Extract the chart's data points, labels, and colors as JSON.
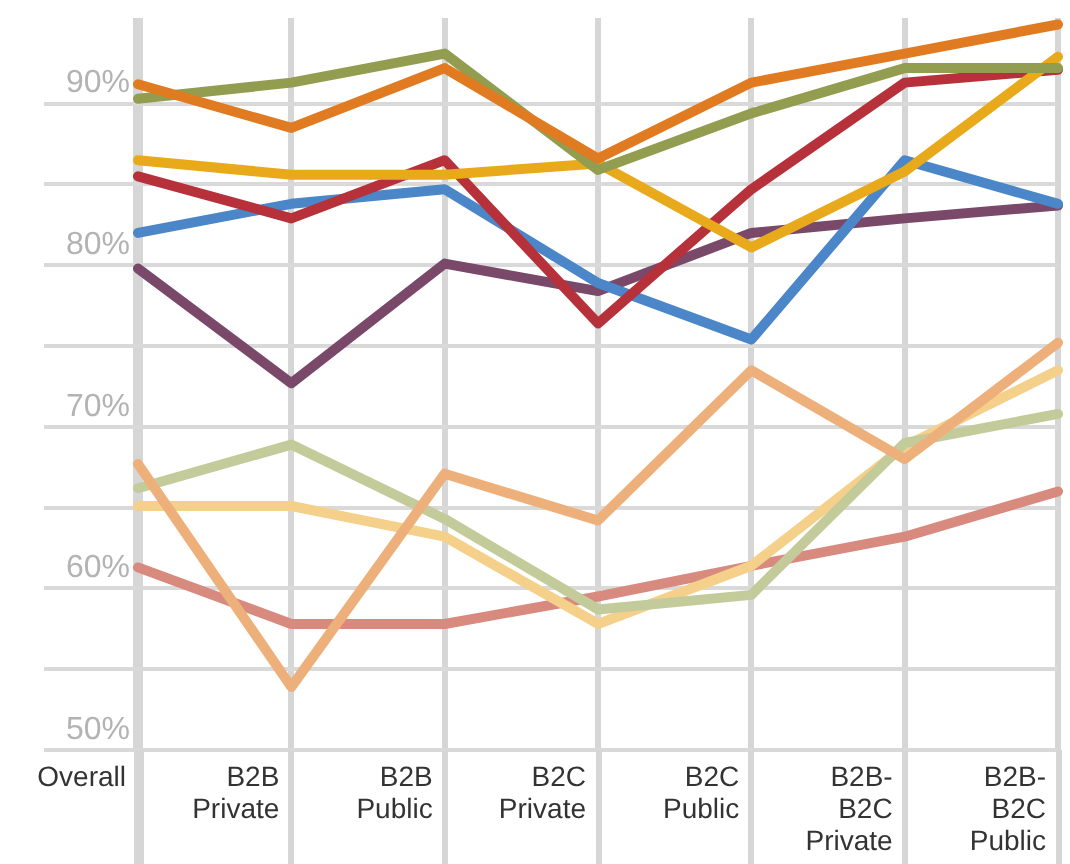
{
  "chart_data": {
    "type": "line",
    "categories": [
      "Overall",
      "B2B Private",
      "B2B Public",
      "B2C Private",
      "B2C Public",
      "B2B-B2C Private",
      "B2B-B2C Public"
    ],
    "series": [
      {
        "color": "#e07b22",
        "values": [
          91.2,
          88.5,
          92.2,
          86.6,
          91.3,
          93.1,
          94.9
        ]
      },
      {
        "color": "#939d4f",
        "values": [
          90.3,
          91.3,
          93.1,
          85.9,
          89.4,
          92.2,
          92.2
        ]
      },
      {
        "color": "#e8a91a",
        "values": [
          86.5,
          85.6,
          85.6,
          86.3,
          81.1,
          85.8,
          92.9
        ]
      },
      {
        "color": "#b7313a",
        "values": [
          85.5,
          82.9,
          86.5,
          76.4,
          84.7,
          91.3,
          92.1
        ]
      },
      {
        "color": "#4a86c8",
        "values": [
          82.0,
          83.8,
          84.7,
          78.9,
          75.4,
          86.5,
          83.8
        ]
      },
      {
        "color": "#7a4868",
        "values": [
          79.8,
          72.7,
          80.1,
          78.4,
          82.0,
          82.9,
          83.7
        ]
      },
      {
        "color": "#eeb07a",
        "values": [
          67.7,
          53.9,
          67.1,
          64.2,
          73.5,
          68.0,
          75.2
        ]
      },
      {
        "color": "#c4cb9a",
        "values": [
          66.2,
          68.9,
          64.3,
          58.7,
          59.6,
          69.0,
          70.8
        ]
      },
      {
        "color": "#f4d08a",
        "values": [
          65.1,
          65.1,
          63.2,
          57.8,
          61.4,
          68.8,
          73.5
        ]
      },
      {
        "color": "#d98a7e",
        "values": [
          61.3,
          57.8,
          57.8,
          59.5,
          61.4,
          63.2,
          66.0
        ]
      }
    ],
    "ylim": [
      50,
      95.3
    ],
    "yticks": [
      {
        "value": 50,
        "label": "50%"
      },
      {
        "value": 55,
        "label": null
      },
      {
        "value": 60,
        "label": "60%"
      },
      {
        "value": 65,
        "label": null
      },
      {
        "value": 70,
        "label": "70%"
      },
      {
        "value": 75,
        "label": null
      },
      {
        "value": 80,
        "label": "80%"
      },
      {
        "value": 85,
        "label": null
      },
      {
        "value": 90,
        "label": "90%"
      }
    ],
    "grid": true,
    "marker": "none"
  }
}
